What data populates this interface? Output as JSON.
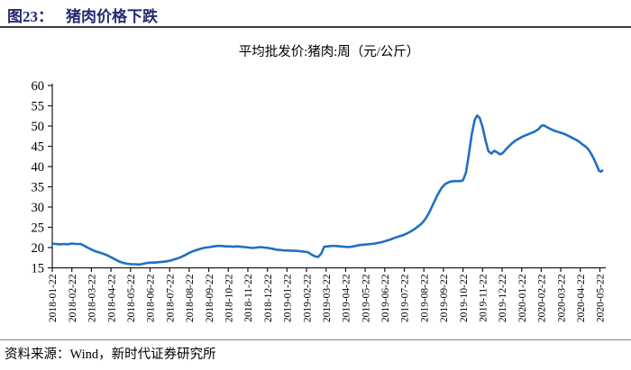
{
  "header": {
    "figure_label": "图23：",
    "figure_title": "猪肉价格下跌"
  },
  "footer": {
    "source_label": "资料来源：",
    "source_text": "Wind，新时代证券研究所"
  },
  "colors": {
    "header_text": "#262a70",
    "header_rule": "#3f3f3f",
    "axis": "#1a1a1a",
    "line": "#2070c0",
    "footer_rule": "#808080"
  },
  "chart_data": {
    "type": "line",
    "title": "平均批发价:猪肉:周（元/公斤）",
    "xlabel": "",
    "ylabel": "",
    "unit": "元/公斤",
    "ylim": [
      15,
      60
    ],
    "y_ticks": [
      60,
      55,
      50,
      45,
      40,
      35,
      30,
      25,
      20,
      15
    ],
    "grid": false,
    "legend_position": "none",
    "line_color": "#2070c0",
    "x_tick_labels": [
      "2018-01-22",
      "2018-02-22",
      "2018-03-22",
      "2018-04-22",
      "2018-05-22",
      "2018-06-22",
      "2018-07-22",
      "2018-08-22",
      "2018-09-22",
      "2018-10-22",
      "2018-11-22",
      "2018-12-22",
      "2019-01-22",
      "2019-02-22",
      "2019-03-22",
      "2019-04-22",
      "2019-05-22",
      "2019-06-22",
      "2019-07-22",
      "2019-08-22",
      "2019-09-22",
      "2019-10-22",
      "2019-11-22",
      "2019-12-22",
      "2020-01-22",
      "2020-02-22",
      "2020-03-22",
      "2020-04-22",
      "2020-05-22"
    ],
    "series": [
      {
        "name": "平均批发价:猪肉:周（元/公斤）",
        "points_note": "x = month index along x_tick_labels (0 = 2018-01-22, 28 = 2020-05-22), y = price in yuan/kg",
        "points": [
          [
            0,
            21.0
          ],
          [
            0.2,
            20.9
          ],
          [
            0.4,
            20.8
          ],
          [
            0.6,
            20.9
          ],
          [
            0.8,
            20.8
          ],
          [
            1.0,
            21.0
          ],
          [
            1.2,
            20.9
          ],
          [
            1.45,
            20.9
          ],
          [
            1.65,
            20.4
          ],
          [
            1.85,
            19.9
          ],
          [
            2.05,
            19.4
          ],
          [
            2.25,
            19.0
          ],
          [
            2.45,
            18.7
          ],
          [
            2.65,
            18.4
          ],
          [
            2.85,
            18.0
          ],
          [
            3.05,
            17.5
          ],
          [
            3.25,
            17.0
          ],
          [
            3.45,
            16.5
          ],
          [
            3.65,
            16.2
          ],
          [
            3.85,
            16.0
          ],
          [
            4.05,
            15.9
          ],
          [
            4.25,
            15.9
          ],
          [
            4.45,
            15.8
          ],
          [
            4.65,
            16.0
          ],
          [
            4.85,
            16.2
          ],
          [
            5.05,
            16.3
          ],
          [
            5.25,
            16.3
          ],
          [
            5.45,
            16.4
          ],
          [
            5.65,
            16.5
          ],
          [
            5.85,
            16.6
          ],
          [
            6.05,
            16.8
          ],
          [
            6.25,
            17.1
          ],
          [
            6.45,
            17.4
          ],
          [
            6.65,
            17.8
          ],
          [
            6.85,
            18.3
          ],
          [
            7.05,
            18.8
          ],
          [
            7.25,
            19.2
          ],
          [
            7.45,
            19.5
          ],
          [
            7.65,
            19.8
          ],
          [
            7.85,
            20.0
          ],
          [
            8.05,
            20.1
          ],
          [
            8.25,
            20.3
          ],
          [
            8.45,
            20.4
          ],
          [
            8.65,
            20.4
          ],
          [
            8.85,
            20.3
          ],
          [
            9.05,
            20.3
          ],
          [
            9.25,
            20.2
          ],
          [
            9.45,
            20.3
          ],
          [
            9.65,
            20.2
          ],
          [
            9.85,
            20.1
          ],
          [
            10.05,
            20.0
          ],
          [
            10.25,
            19.9
          ],
          [
            10.45,
            20.0
          ],
          [
            10.65,
            20.1
          ],
          [
            10.85,
            20.0
          ],
          [
            11.05,
            19.9
          ],
          [
            11.25,
            19.7
          ],
          [
            11.45,
            19.5
          ],
          [
            11.65,
            19.4
          ],
          [
            11.85,
            19.3
          ],
          [
            12.05,
            19.3
          ],
          [
            12.25,
            19.2
          ],
          [
            12.45,
            19.2
          ],
          [
            12.65,
            19.1
          ],
          [
            12.85,
            19.0
          ],
          [
            13.05,
            18.9
          ],
          [
            13.25,
            18.3
          ],
          [
            13.45,
            17.8
          ],
          [
            13.6,
            17.7
          ],
          [
            13.75,
            18.5
          ],
          [
            13.9,
            20.2
          ],
          [
            14.1,
            20.3
          ],
          [
            14.3,
            20.4
          ],
          [
            14.5,
            20.4
          ],
          [
            14.7,
            20.3
          ],
          [
            14.9,
            20.2
          ],
          [
            15.1,
            20.1
          ],
          [
            15.3,
            20.2
          ],
          [
            15.5,
            20.4
          ],
          [
            15.7,
            20.6
          ],
          [
            15.9,
            20.7
          ],
          [
            16.1,
            20.8
          ],
          [
            16.3,
            20.9
          ],
          [
            16.5,
            21.0
          ],
          [
            16.7,
            21.2
          ],
          [
            16.9,
            21.4
          ],
          [
            17.1,
            21.7
          ],
          [
            17.3,
            22.0
          ],
          [
            17.5,
            22.4
          ],
          [
            17.7,
            22.7
          ],
          [
            17.9,
            23.0
          ],
          [
            18.1,
            23.4
          ],
          [
            18.3,
            23.9
          ],
          [
            18.5,
            24.5
          ],
          [
            18.7,
            25.2
          ],
          [
            18.9,
            26.0
          ],
          [
            19.1,
            27.2
          ],
          [
            19.3,
            28.9
          ],
          [
            19.5,
            31.0
          ],
          [
            19.7,
            33.0
          ],
          [
            19.9,
            34.7
          ],
          [
            20.1,
            35.7
          ],
          [
            20.3,
            36.2
          ],
          [
            20.5,
            36.4
          ],
          [
            20.7,
            36.4
          ],
          [
            20.85,
            36.4
          ],
          [
            21.0,
            36.6
          ],
          [
            21.15,
            38.5
          ],
          [
            21.3,
            43.0
          ],
          [
            21.45,
            48.0
          ],
          [
            21.6,
            51.5
          ],
          [
            21.72,
            52.6
          ],
          [
            21.85,
            52.0
          ],
          [
            22.0,
            49.8
          ],
          [
            22.15,
            46.5
          ],
          [
            22.3,
            43.8
          ],
          [
            22.45,
            43.2
          ],
          [
            22.6,
            43.9
          ],
          [
            22.75,
            43.5
          ],
          [
            22.9,
            43.0
          ],
          [
            23.05,
            43.4
          ],
          [
            23.2,
            44.3
          ],
          [
            23.35,
            45.0
          ],
          [
            23.5,
            45.7
          ],
          [
            23.65,
            46.3
          ],
          [
            23.85,
            46.9
          ],
          [
            24.05,
            47.4
          ],
          [
            24.25,
            47.8
          ],
          [
            24.45,
            48.2
          ],
          [
            24.65,
            48.6
          ],
          [
            24.85,
            49.2
          ],
          [
            25.0,
            50.0
          ],
          [
            25.12,
            50.2
          ],
          [
            25.3,
            49.7
          ],
          [
            25.5,
            49.2
          ],
          [
            25.7,
            48.8
          ],
          [
            25.9,
            48.5
          ],
          [
            26.1,
            48.2
          ],
          [
            26.3,
            47.8
          ],
          [
            26.5,
            47.3
          ],
          [
            26.7,
            46.8
          ],
          [
            26.9,
            46.3
          ],
          [
            27.1,
            45.5
          ],
          [
            27.25,
            45.0
          ],
          [
            27.4,
            44.3
          ],
          [
            27.55,
            43.2
          ],
          [
            27.7,
            41.8
          ],
          [
            27.85,
            40.2
          ],
          [
            27.95,
            39.0
          ],
          [
            28.05,
            38.7
          ],
          [
            28.12,
            39.0
          ]
        ]
      }
    ]
  }
}
